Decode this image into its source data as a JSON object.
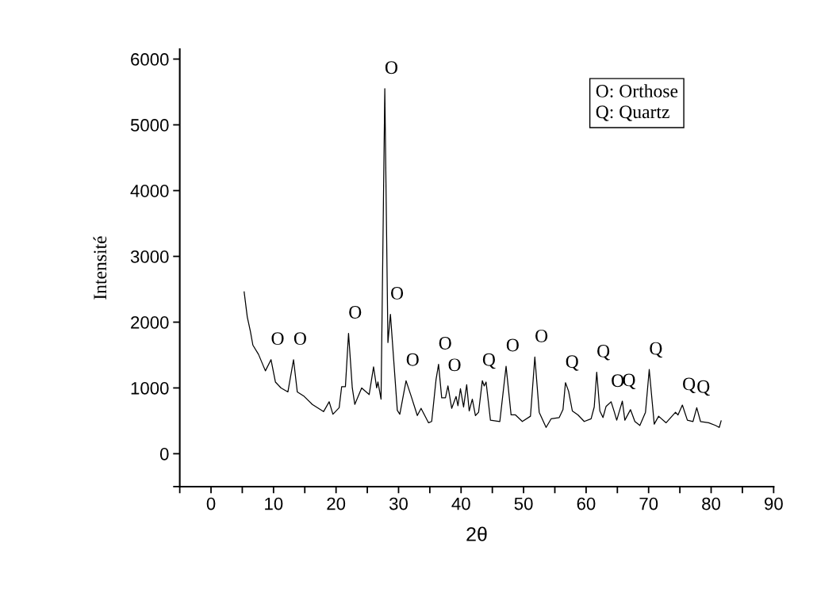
{
  "chart_data": {
    "type": "line",
    "xlabel": "2θ",
    "ylabel": "Intensité",
    "xlim": [
      -5,
      90
    ],
    "ylim": [
      -500,
      6150
    ],
    "xticks": [
      {
        "value": -5,
        "label": null
      },
      0,
      {
        "value": 5,
        "label": null
      },
      10,
      {
        "value": 15,
        "label": null
      },
      20,
      {
        "value": 25,
        "label": null
      },
      30,
      {
        "value": 35,
        "label": null
      },
      40,
      {
        "value": 45,
        "label": null
      },
      50,
      {
        "value": 55,
        "label": null
      },
      60,
      {
        "value": 65,
        "label": null
      },
      70,
      {
        "value": 75,
        "label": null
      },
      80,
      {
        "value": 85,
        "label": null
      },
      90
    ],
    "yticks": [
      {
        "value": -500,
        "label": null
      },
      0,
      1000,
      2000,
      3000,
      4000,
      5000,
      6000
    ],
    "grid": false,
    "legend": false,
    "marker": "none",
    "line_style": "solid",
    "series": [
      {
        "color": "#000000",
        "x": [
          5.3,
          5.8,
          6.3,
          6.7,
          7.6,
          8.7,
          9.6,
          10.3,
          11.2,
          12.3,
          13.2,
          13.8,
          14.8,
          16.2,
          18.0,
          18.9,
          19.5,
          20.5,
          20.9,
          21.5,
          22.0,
          22.6,
          23.0,
          24.1,
          25.3,
          26.0,
          26.5,
          26.7,
          27.2,
          27.8,
          28.3,
          28.7,
          29.8,
          30.2,
          31.2,
          32.1,
          33.0,
          33.6,
          34.8,
          35.3,
          36.0,
          36.4,
          36.9,
          37.5,
          37.9,
          38.5,
          39.2,
          39.5,
          39.9,
          40.4,
          40.9,
          41.3,
          41.8,
          42.3,
          42.8,
          43.4,
          43.7,
          44.0,
          44.7,
          46.2,
          47.2,
          48.0,
          48.7,
          49.8,
          51.1,
          51.8,
          52.5,
          53.6,
          54.4,
          55.7,
          56.3,
          56.7,
          57.2,
          57.8,
          58.7,
          59.7,
          60.8,
          61.3,
          61.7,
          62.2,
          62.7,
          63.2,
          64.0,
          64.5,
          64.9,
          65.8,
          66.2,
          67.1,
          67.8,
          68.6,
          69.5,
          70.1,
          70.9,
          71.6,
          72.8,
          74.3,
          74.7,
          75.4,
          76.2,
          77.1,
          77.7,
          78.3,
          79.6,
          80.7,
          81.3,
          81.6
        ],
        "values": [
          2460,
          2080,
          1860,
          1650,
          1510,
          1260,
          1430,
          1090,
          1000,
          940,
          1430,
          940,
          880,
          750,
          640,
          790,
          600,
          700,
          1020,
          1020,
          1830,
          1000,
          750,
          1000,
          900,
          1320,
          1000,
          1090,
          830,
          5550,
          1690,
          2120,
          660,
          600,
          1110,
          850,
          580,
          690,
          470,
          490,
          1130,
          1360,
          850,
          850,
          1030,
          690,
          870,
          730,
          990,
          710,
          1050,
          650,
          830,
          580,
          630,
          1110,
          1030,
          1090,
          510,
          490,
          1330,
          590,
          590,
          490,
          570,
          1470,
          630,
          400,
          530,
          550,
          670,
          1080,
          950,
          650,
          590,
          490,
          530,
          710,
          1240,
          650,
          550,
          720,
          790,
          640,
          510,
          800,
          510,
          670,
          490,
          430,
          630,
          1280,
          450,
          570,
          470,
          630,
          590,
          740,
          510,
          490,
          700,
          490,
          470,
          430,
          400,
          500
        ]
      }
    ],
    "annotations": [
      "O: Orthose",
      "Q: Quartz",
      {
        "text": "O",
        "x": 9.6,
        "y": 1430
      },
      {
        "text": "O",
        "x": 13.2,
        "y": 1430
      },
      {
        "text": "O",
        "x": 22.0,
        "y": 1830
      },
      {
        "text": "O",
        "x": 27.8,
        "y": 5550
      },
      {
        "text": "O",
        "x": 28.7,
        "y": 2120
      },
      {
        "text": "O",
        "x": 31.2,
        "y": 1110
      },
      {
        "text": "O",
        "x": 36.4,
        "y": 1360
      },
      {
        "text": "O",
        "x": 37.9,
        "y": 1030
      },
      {
        "text": "Q",
        "x": 43.4,
        "y": 1110
      },
      {
        "text": "O",
        "x": 47.2,
        "y": 1330
      },
      {
        "text": "O",
        "x": 51.8,
        "y": 1470
      },
      {
        "text": "Q",
        "x": 56.7,
        "y": 1080
      },
      {
        "text": "Q",
        "x": 61.7,
        "y": 1240
      },
      {
        "text": "O",
        "x": 64.0,
        "y": 790
      },
      {
        "text": "Q",
        "x": 65.8,
        "y": 800
      },
      {
        "text": "Q",
        "x": 70.1,
        "y": 1280
      },
      {
        "text": "Q",
        "x": 75.4,
        "y": 740
      },
      {
        "text": "Q",
        "x": 77.7,
        "y": 700
      }
    ]
  }
}
